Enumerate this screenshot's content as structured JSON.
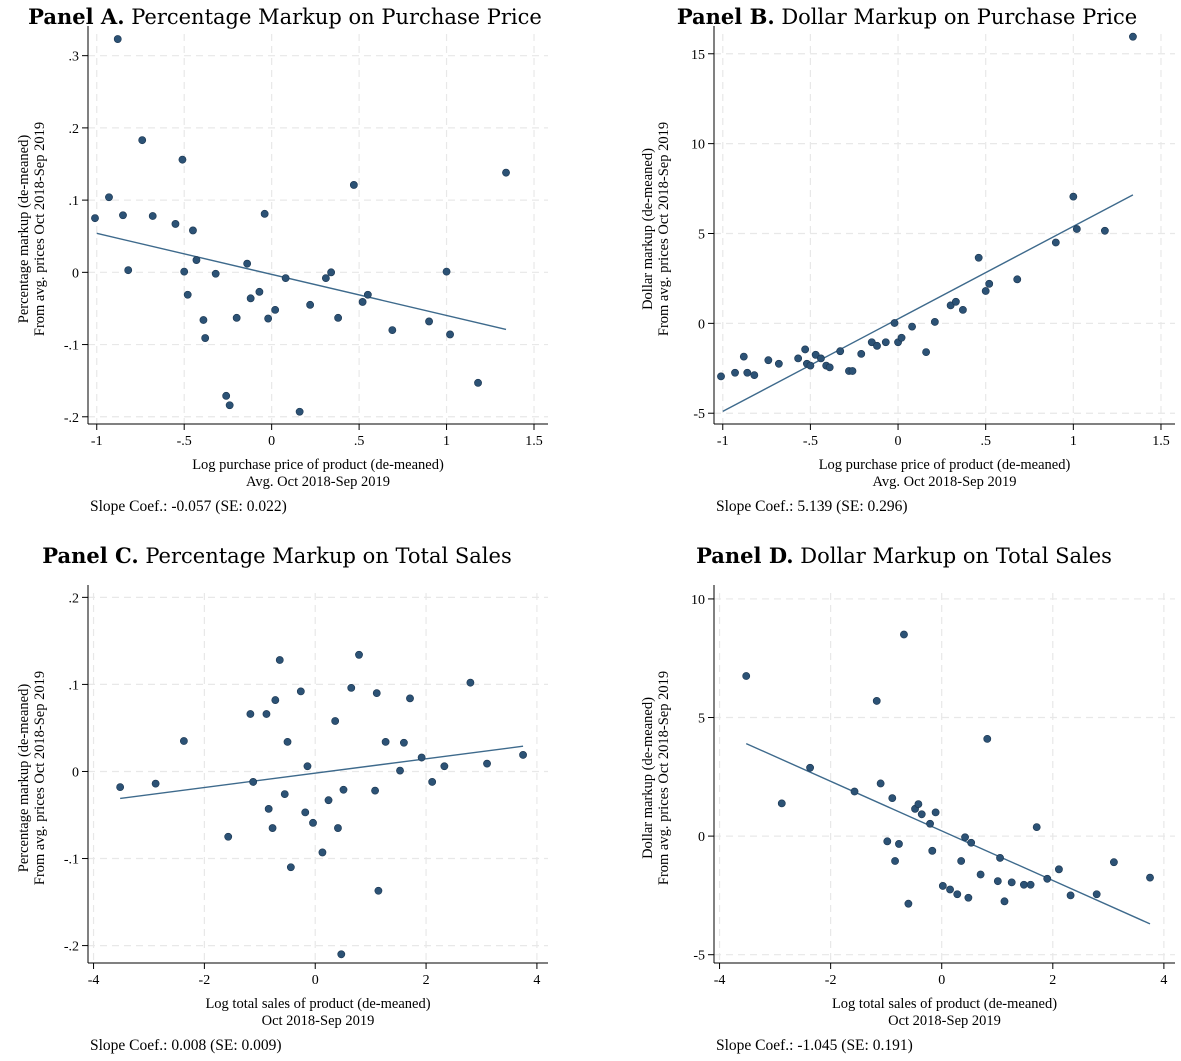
{
  "chart_data": [
    {
      "type": "scatter",
      "panel_label": "Panel A.",
      "panel_title": "Percentage Markup on Purchase Price",
      "xlabel": [
        "Log purchase price of product (de-meaned)",
        "Avg. Oct 2018-Sep 2019"
      ],
      "ylabel": [
        "Percentage markup (de-meaned)",
        "From avg. prices Oct 2018-Sep 2019"
      ],
      "xlim": [
        -1.05,
        1.58
      ],
      "ylim": [
        -0.21,
        0.33
      ],
      "xticks": [
        -1,
        -0.5,
        0,
        0.5,
        1,
        1.5
      ],
      "xtick_labels": [
        "-1",
        "-.5",
        "0",
        ".5",
        "1",
        "1.5"
      ],
      "yticks": [
        -0.2,
        -0.1,
        0,
        0.1,
        0.2,
        0.3
      ],
      "ytick_labels": [
        "-.2",
        "-.1",
        "0",
        ".1",
        ".2",
        ".3"
      ],
      "grid": true,
      "points": [
        [
          -1.01,
          0.075
        ],
        [
          -0.93,
          0.104
        ],
        [
          -0.88,
          0.323
        ],
        [
          -0.85,
          0.079
        ],
        [
          -0.82,
          0.003
        ],
        [
          -0.74,
          0.183
        ],
        [
          -0.68,
          0.078
        ],
        [
          -0.55,
          0.067
        ],
        [
          -0.51,
          0.156
        ],
        [
          -0.5,
          0.001
        ],
        [
          -0.48,
          -0.031
        ],
        [
          -0.45,
          0.058
        ],
        [
          -0.43,
          0.017
        ],
        [
          -0.39,
          -0.066
        ],
        [
          -0.38,
          -0.091
        ],
        [
          -0.32,
          -0.002
        ],
        [
          -0.26,
          -0.171
        ],
        [
          -0.24,
          -0.184
        ],
        [
          -0.2,
          -0.063
        ],
        [
          -0.14,
          0.012
        ],
        [
          -0.12,
          -0.036
        ],
        [
          -0.07,
          -0.027
        ],
        [
          -0.04,
          0.081
        ],
        [
          -0.02,
          -0.064
        ],
        [
          0.02,
          -0.052
        ],
        [
          0.08,
          -0.008
        ],
        [
          0.16,
          -0.193
        ],
        [
          0.22,
          -0.045
        ],
        [
          0.31,
          -0.008
        ],
        [
          0.34,
          0.0
        ],
        [
          0.38,
          -0.063
        ],
        [
          0.47,
          0.121
        ],
        [
          0.52,
          -0.041
        ],
        [
          0.55,
          -0.031
        ],
        [
          0.69,
          -0.08
        ],
        [
          0.9,
          -0.068
        ],
        [
          1.0,
          0.001
        ],
        [
          1.02,
          -0.086
        ],
        [
          1.18,
          -0.153
        ],
        [
          1.34,
          0.138
        ]
      ],
      "fit_line": [
        [
          -1.0,
          0.054
        ],
        [
          1.34,
          -0.079
        ]
      ],
      "slope_note": "Slope Coef.: -0.057  (SE: 0.022)",
      "marker_color": "#2c5275",
      "line_color": "#3e6a8c"
    },
    {
      "type": "scatter",
      "panel_label": "Panel B.",
      "panel_title": "Dollar Markup on Purchase Price",
      "xlabel": [
        "Log purchase price of product (de-meaned)",
        "Avg. Oct 2018-Sep 2019"
      ],
      "ylabel": [
        "Dollar markup (de-meaned)",
        "From avg. prices Oct 2018-Sep 2019"
      ],
      "xlim": [
        -1.05,
        1.58
      ],
      "ylim": [
        -5.6,
        16.1
      ],
      "xticks": [
        -1,
        -0.5,
        0,
        0.5,
        1,
        1.5
      ],
      "xtick_labels": [
        "-1",
        "-.5",
        "0",
        ".5",
        "1",
        "1.5"
      ],
      "yticks": [
        -5,
        0,
        5,
        10,
        15
      ],
      "ytick_labels": [
        "-5",
        "0",
        "5",
        "10",
        "15"
      ],
      "grid": true,
      "points": [
        [
          -1.01,
          -2.95
        ],
        [
          -0.93,
          -2.75
        ],
        [
          -0.88,
          -1.85
        ],
        [
          -0.86,
          -2.75
        ],
        [
          -0.82,
          -2.88
        ],
        [
          -0.74,
          -2.05
        ],
        [
          -0.68,
          -2.25
        ],
        [
          -0.57,
          -1.95
        ],
        [
          -0.53,
          -1.45
        ],
        [
          -0.52,
          -2.25
        ],
        [
          -0.5,
          -2.35
        ],
        [
          -0.47,
          -1.75
        ],
        [
          -0.44,
          -1.95
        ],
        [
          -0.41,
          -2.35
        ],
        [
          -0.39,
          -2.45
        ],
        [
          -0.33,
          -1.55
        ],
        [
          -0.28,
          -2.65
        ],
        [
          -0.26,
          -2.65
        ],
        [
          -0.21,
          -1.7
        ],
        [
          -0.15,
          -1.05
        ],
        [
          -0.12,
          -1.25
        ],
        [
          -0.07,
          -1.05
        ],
        [
          -0.02,
          0.02
        ],
        [
          0.0,
          -1.05
        ],
        [
          0.02,
          -0.8
        ],
        [
          0.08,
          -0.18
        ],
        [
          0.16,
          -1.6
        ],
        [
          0.21,
          0.08
        ],
        [
          0.3,
          1.0
        ],
        [
          0.33,
          1.2
        ],
        [
          0.37,
          0.75
        ],
        [
          0.46,
          3.65
        ],
        [
          0.5,
          1.8
        ],
        [
          0.52,
          2.2
        ],
        [
          0.68,
          2.45
        ],
        [
          0.9,
          4.5
        ],
        [
          1.0,
          7.05
        ],
        [
          1.02,
          5.25
        ],
        [
          1.18,
          5.15
        ],
        [
          1.34,
          15.95
        ]
      ],
      "fit_line": [
        [
          -1.0,
          -4.9
        ],
        [
          1.34,
          7.15
        ]
      ],
      "slope_note": "Slope Coef.: 5.139  (SE: 0.296)",
      "marker_color": "#2c5275",
      "line_color": "#3e6a8c"
    },
    {
      "type": "scatter",
      "panel_label": "Panel C.",
      "panel_title": "Percentage Markup on Total Sales",
      "xlabel": [
        "Log total sales of product (de-meaned)",
        "Oct 2018-Sep 2019"
      ],
      "ylabel": [
        "Percentage markup (de-meaned)",
        "From avg. prices Oct 2018-Sep 2019"
      ],
      "xlim": [
        -4.1,
        4.2
      ],
      "ylim": [
        -0.22,
        0.205
      ],
      "xticks": [
        -4,
        -2,
        0,
        2,
        4
      ],
      "xtick_labels": [
        "-4",
        "-2",
        "0",
        "2",
        "4"
      ],
      "yticks": [
        -0.2,
        -0.1,
        0,
        0.1,
        0.2
      ],
      "ytick_labels": [
        "-.2",
        "-.1",
        "0",
        ".1",
        ".2"
      ],
      "grid": true,
      "points": [
        [
          -3.52,
          -0.018
        ],
        [
          -2.88,
          -0.014
        ],
        [
          -2.37,
          0.035
        ],
        [
          -1.57,
          -0.075
        ],
        [
          -1.17,
          0.066
        ],
        [
          -1.12,
          -0.012
        ],
        [
          -0.88,
          0.066
        ],
        [
          -0.84,
          -0.043
        ],
        [
          -0.77,
          -0.065
        ],
        [
          -0.72,
          0.082
        ],
        [
          -0.64,
          0.128
        ],
        [
          -0.55,
          -0.026
        ],
        [
          -0.5,
          0.034
        ],
        [
          -0.44,
          -0.11
        ],
        [
          -0.26,
          0.092
        ],
        [
          -0.18,
          -0.047
        ],
        [
          -0.14,
          0.006
        ],
        [
          -0.04,
          -0.059
        ],
        [
          0.13,
          -0.093
        ],
        [
          0.24,
          -0.033
        ],
        [
          0.36,
          0.058
        ],
        [
          0.41,
          -0.065
        ],
        [
          0.47,
          -0.21
        ],
        [
          0.51,
          -0.021
        ],
        [
          0.65,
          0.096
        ],
        [
          0.79,
          0.134
        ],
        [
          1.08,
          -0.022
        ],
        [
          1.11,
          0.09
        ],
        [
          1.14,
          -0.137
        ],
        [
          1.27,
          0.034
        ],
        [
          1.53,
          0.001
        ],
        [
          1.6,
          0.033
        ],
        [
          1.71,
          0.084
        ],
        [
          1.92,
          0.016
        ],
        [
          2.11,
          -0.012
        ],
        [
          2.33,
          0.006
        ],
        [
          2.8,
          0.102
        ],
        [
          3.1,
          0.009
        ],
        [
          3.75,
          0.019
        ]
      ],
      "fit_line": [
        [
          -3.52,
          -0.031
        ],
        [
          3.75,
          0.029
        ]
      ],
      "slope_note": "Slope Coef.: 0.008  (SE: 0.009)",
      "marker_color": "#2c5275",
      "line_color": "#3e6a8c"
    },
    {
      "type": "scatter",
      "panel_label": "Panel D.",
      "panel_title": "Dollar Markup on Total Sales",
      "xlabel": [
        "Log total sales of product (de-meaned)",
        "Oct 2018-Sep 2019"
      ],
      "ylabel": [
        "Dollar markup (de-meaned)",
        "From avg. prices Oct 2018-Sep 2019"
      ],
      "xlim": [
        -4.1,
        4.2
      ],
      "ylim": [
        -5.35,
        10.25
      ],
      "xticks": [
        -4,
        -2,
        0,
        2,
        4
      ],
      "xtick_labels": [
        "-4",
        "-2",
        "0",
        "2",
        "4"
      ],
      "yticks": [
        -5,
        0,
        5,
        10
      ],
      "ytick_labels": [
        "-5",
        "0",
        "5",
        "10"
      ],
      "grid": true,
      "points": [
        [
          -3.52,
          6.75
        ],
        [
          -2.88,
          1.38
        ],
        [
          -2.37,
          2.88
        ],
        [
          -1.57,
          1.88
        ],
        [
          -1.17,
          5.7
        ],
        [
          -1.1,
          2.22
        ],
        [
          -0.98,
          -0.22
        ],
        [
          -0.89,
          1.6
        ],
        [
          -0.84,
          -1.05
        ],
        [
          -0.77,
          -0.33
        ],
        [
          -0.68,
          8.5
        ],
        [
          -0.6,
          -2.85
        ],
        [
          -0.48,
          1.15
        ],
        [
          -0.42,
          1.35
        ],
        [
          -0.36,
          0.92
        ],
        [
          -0.21,
          0.52
        ],
        [
          -0.17,
          -0.62
        ],
        [
          -0.11,
          1.0
        ],
        [
          0.02,
          -2.1
        ],
        [
          0.15,
          -2.25
        ],
        [
          0.28,
          -2.45
        ],
        [
          0.35,
          -1.05
        ],
        [
          0.42,
          -0.05
        ],
        [
          0.48,
          -2.6
        ],
        [
          0.53,
          -0.28
        ],
        [
          0.7,
          -1.62
        ],
        [
          0.82,
          4.1
        ],
        [
          1.01,
          -1.9
        ],
        [
          1.05,
          -0.92
        ],
        [
          1.13,
          -2.75
        ],
        [
          1.26,
          -1.95
        ],
        [
          1.48,
          -2.05
        ],
        [
          1.6,
          -2.05
        ],
        [
          1.71,
          0.38
        ],
        [
          1.9,
          -1.8
        ],
        [
          2.11,
          -1.4
        ],
        [
          2.32,
          -2.5
        ],
        [
          2.79,
          -2.45
        ],
        [
          3.1,
          -1.1
        ],
        [
          3.75,
          -1.75
        ]
      ],
      "fit_line": [
        [
          -3.52,
          3.9
        ],
        [
          3.75,
          -3.7
        ]
      ],
      "slope_note": "Slope Coef.: -1.045  (SE: 0.191)",
      "marker_color": "#2c5275",
      "line_color": "#3e6a8c"
    }
  ]
}
